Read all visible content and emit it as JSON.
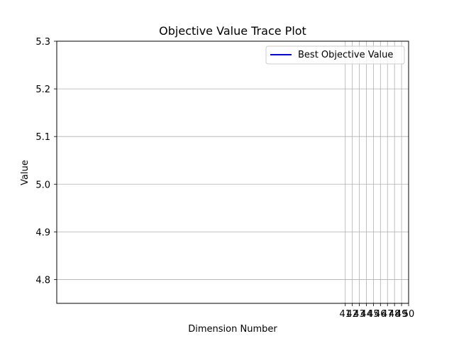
{
  "chart_data": {
    "type": "line",
    "title": "Objective Value Trace Plot",
    "xlabel": "Dimension Number",
    "ylabel": "Value",
    "xlim": [
      0,
      50
    ],
    "ylim": [
      4.75,
      5.3
    ],
    "x_ticks": [
      41,
      42,
      43,
      44,
      45,
      46,
      47,
      48,
      49,
      50
    ],
    "x_tick_labels": [
      "41",
      "42",
      "43",
      "44",
      "45",
      "46",
      "47",
      "48",
      "49",
      "50"
    ],
    "y_ticks": [
      4.8,
      4.9,
      5.0,
      5.1,
      5.2,
      5.3
    ],
    "y_tick_labels": [
      "4.8",
      "4.9",
      "5.0",
      "5.1",
      "5.2",
      "5.3"
    ],
    "grid": true,
    "legend_position": "upper-right",
    "series": [
      {
        "name": "Best Objective Value",
        "color": "#0000ff",
        "x": [],
        "y": []
      }
    ]
  }
}
